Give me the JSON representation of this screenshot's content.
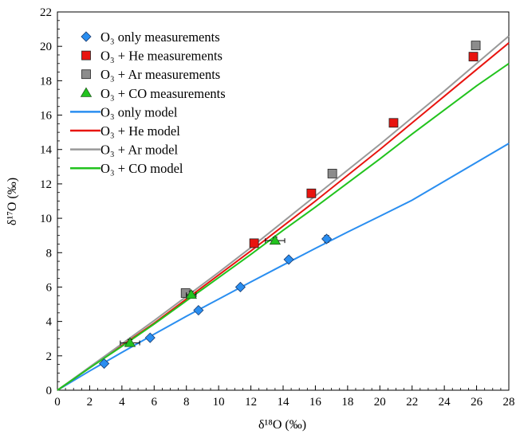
{
  "chart_data": {
    "type": "scatter",
    "xlabel": "δ¹⁸O (‰)",
    "ylabel": "δ¹⁷O (‰)",
    "xlim": [
      0,
      28
    ],
    "ylim": [
      0,
      22
    ],
    "xticks": [
      0,
      2,
      4,
      6,
      8,
      10,
      12,
      14,
      16,
      18,
      20,
      22,
      24,
      26,
      28
    ],
    "yticks": [
      0,
      2,
      4,
      6,
      8,
      10,
      12,
      14,
      16,
      18,
      20,
      22
    ],
    "grid": false,
    "legend_position": "top-left",
    "series": [
      {
        "name": "O₃ only measurements",
        "kind": "points",
        "marker": "diamond",
        "color": "#2a8ef0",
        "points": [
          [
            2.9,
            1.55
          ],
          [
            5.75,
            3.05
          ],
          [
            8.75,
            4.65
          ],
          [
            11.35,
            6.0
          ],
          [
            14.35,
            7.6
          ],
          [
            16.7,
            8.8
          ]
        ],
        "xerr": [
          0,
          0,
          0,
          0,
          0,
          0
        ],
        "yerr": [
          0,
          0,
          0,
          0,
          0,
          0.2
        ]
      },
      {
        "name": "O₃ + He measurements",
        "kind": "points",
        "marker": "square",
        "color": "#e8140f",
        "points": [
          [
            12.2,
            8.55
          ],
          [
            15.75,
            11.45
          ],
          [
            20.85,
            15.55
          ],
          [
            25.8,
            19.4
          ]
        ],
        "xerr": [
          0,
          0,
          0,
          0
        ],
        "yerr": [
          0,
          0,
          0,
          0
        ]
      },
      {
        "name": "O₃ + Ar measurements",
        "kind": "points",
        "marker": "square",
        "color": "#8c8c8c",
        "points": [
          [
            7.95,
            5.65
          ],
          [
            17.05,
            12.6
          ],
          [
            25.95,
            20.05
          ]
        ],
        "xerr": [
          0,
          0,
          0
        ],
        "yerr": [
          0,
          0,
          0
        ]
      },
      {
        "name": "O₃ + CO measurements",
        "kind": "points",
        "marker": "triangle",
        "color": "#22c31e",
        "points": [
          [
            4.5,
            2.75
          ],
          [
            8.3,
            5.55
          ],
          [
            13.5,
            8.7
          ]
        ],
        "xerr": [
          0.6,
          0.3,
          0.6
        ],
        "yerr": [
          0.2,
          0.2,
          0.2
        ]
      },
      {
        "name": "O₃ only model",
        "kind": "line",
        "color": "#2a8ef0",
        "points": [
          [
            0,
            0
          ],
          [
            2,
            1.12
          ],
          [
            4,
            2.2
          ],
          [
            6,
            3.26
          ],
          [
            8,
            4.3
          ],
          [
            10,
            5.3
          ],
          [
            12,
            6.3
          ],
          [
            14,
            7.28
          ],
          [
            16,
            8.25
          ],
          [
            18,
            9.2
          ],
          [
            20,
            10.12
          ],
          [
            22,
            11.05
          ],
          [
            24,
            12.15
          ],
          [
            26,
            13.25
          ],
          [
            28,
            14.35
          ]
        ]
      },
      {
        "name": "O₃ + He model",
        "kind": "line",
        "color": "#e8140f",
        "points": [
          [
            0,
            0
          ],
          [
            2,
            1.3
          ],
          [
            4,
            2.6
          ],
          [
            6,
            3.9
          ],
          [
            8,
            5.3
          ],
          [
            10,
            6.7
          ],
          [
            12,
            8.1
          ],
          [
            14,
            9.55
          ],
          [
            16,
            11.0
          ],
          [
            18,
            12.5
          ],
          [
            20,
            14.0
          ],
          [
            22,
            15.55
          ],
          [
            24,
            17.1
          ],
          [
            26,
            18.65
          ],
          [
            28,
            20.2
          ]
        ]
      },
      {
        "name": "O₃ + Ar model",
        "kind": "line",
        "color": "#999999",
        "points": [
          [
            0,
            0
          ],
          [
            2,
            1.35
          ],
          [
            4,
            2.7
          ],
          [
            6,
            4.05
          ],
          [
            8,
            5.45
          ],
          [
            10,
            6.85
          ],
          [
            12,
            8.3
          ],
          [
            14,
            9.8
          ],
          [
            16,
            11.3
          ],
          [
            18,
            12.8
          ],
          [
            20,
            14.3
          ],
          [
            22,
            15.85
          ],
          [
            24,
            17.4
          ],
          [
            26,
            19.0
          ],
          [
            28,
            20.6
          ]
        ]
      },
      {
        "name": "O₃ + CO model",
        "kind": "line",
        "color": "#22c31e",
        "points": [
          [
            0,
            0
          ],
          [
            2,
            1.3
          ],
          [
            4,
            2.55
          ],
          [
            6,
            3.85
          ],
          [
            8,
            5.2
          ],
          [
            10,
            6.55
          ],
          [
            12,
            7.9
          ],
          [
            14,
            9.3
          ],
          [
            16,
            10.65
          ],
          [
            18,
            12.05
          ],
          [
            20,
            13.45
          ],
          [
            22,
            14.9
          ],
          [
            24,
            16.3
          ],
          [
            26,
            17.7
          ],
          [
            28,
            19.0
          ]
        ]
      }
    ]
  }
}
